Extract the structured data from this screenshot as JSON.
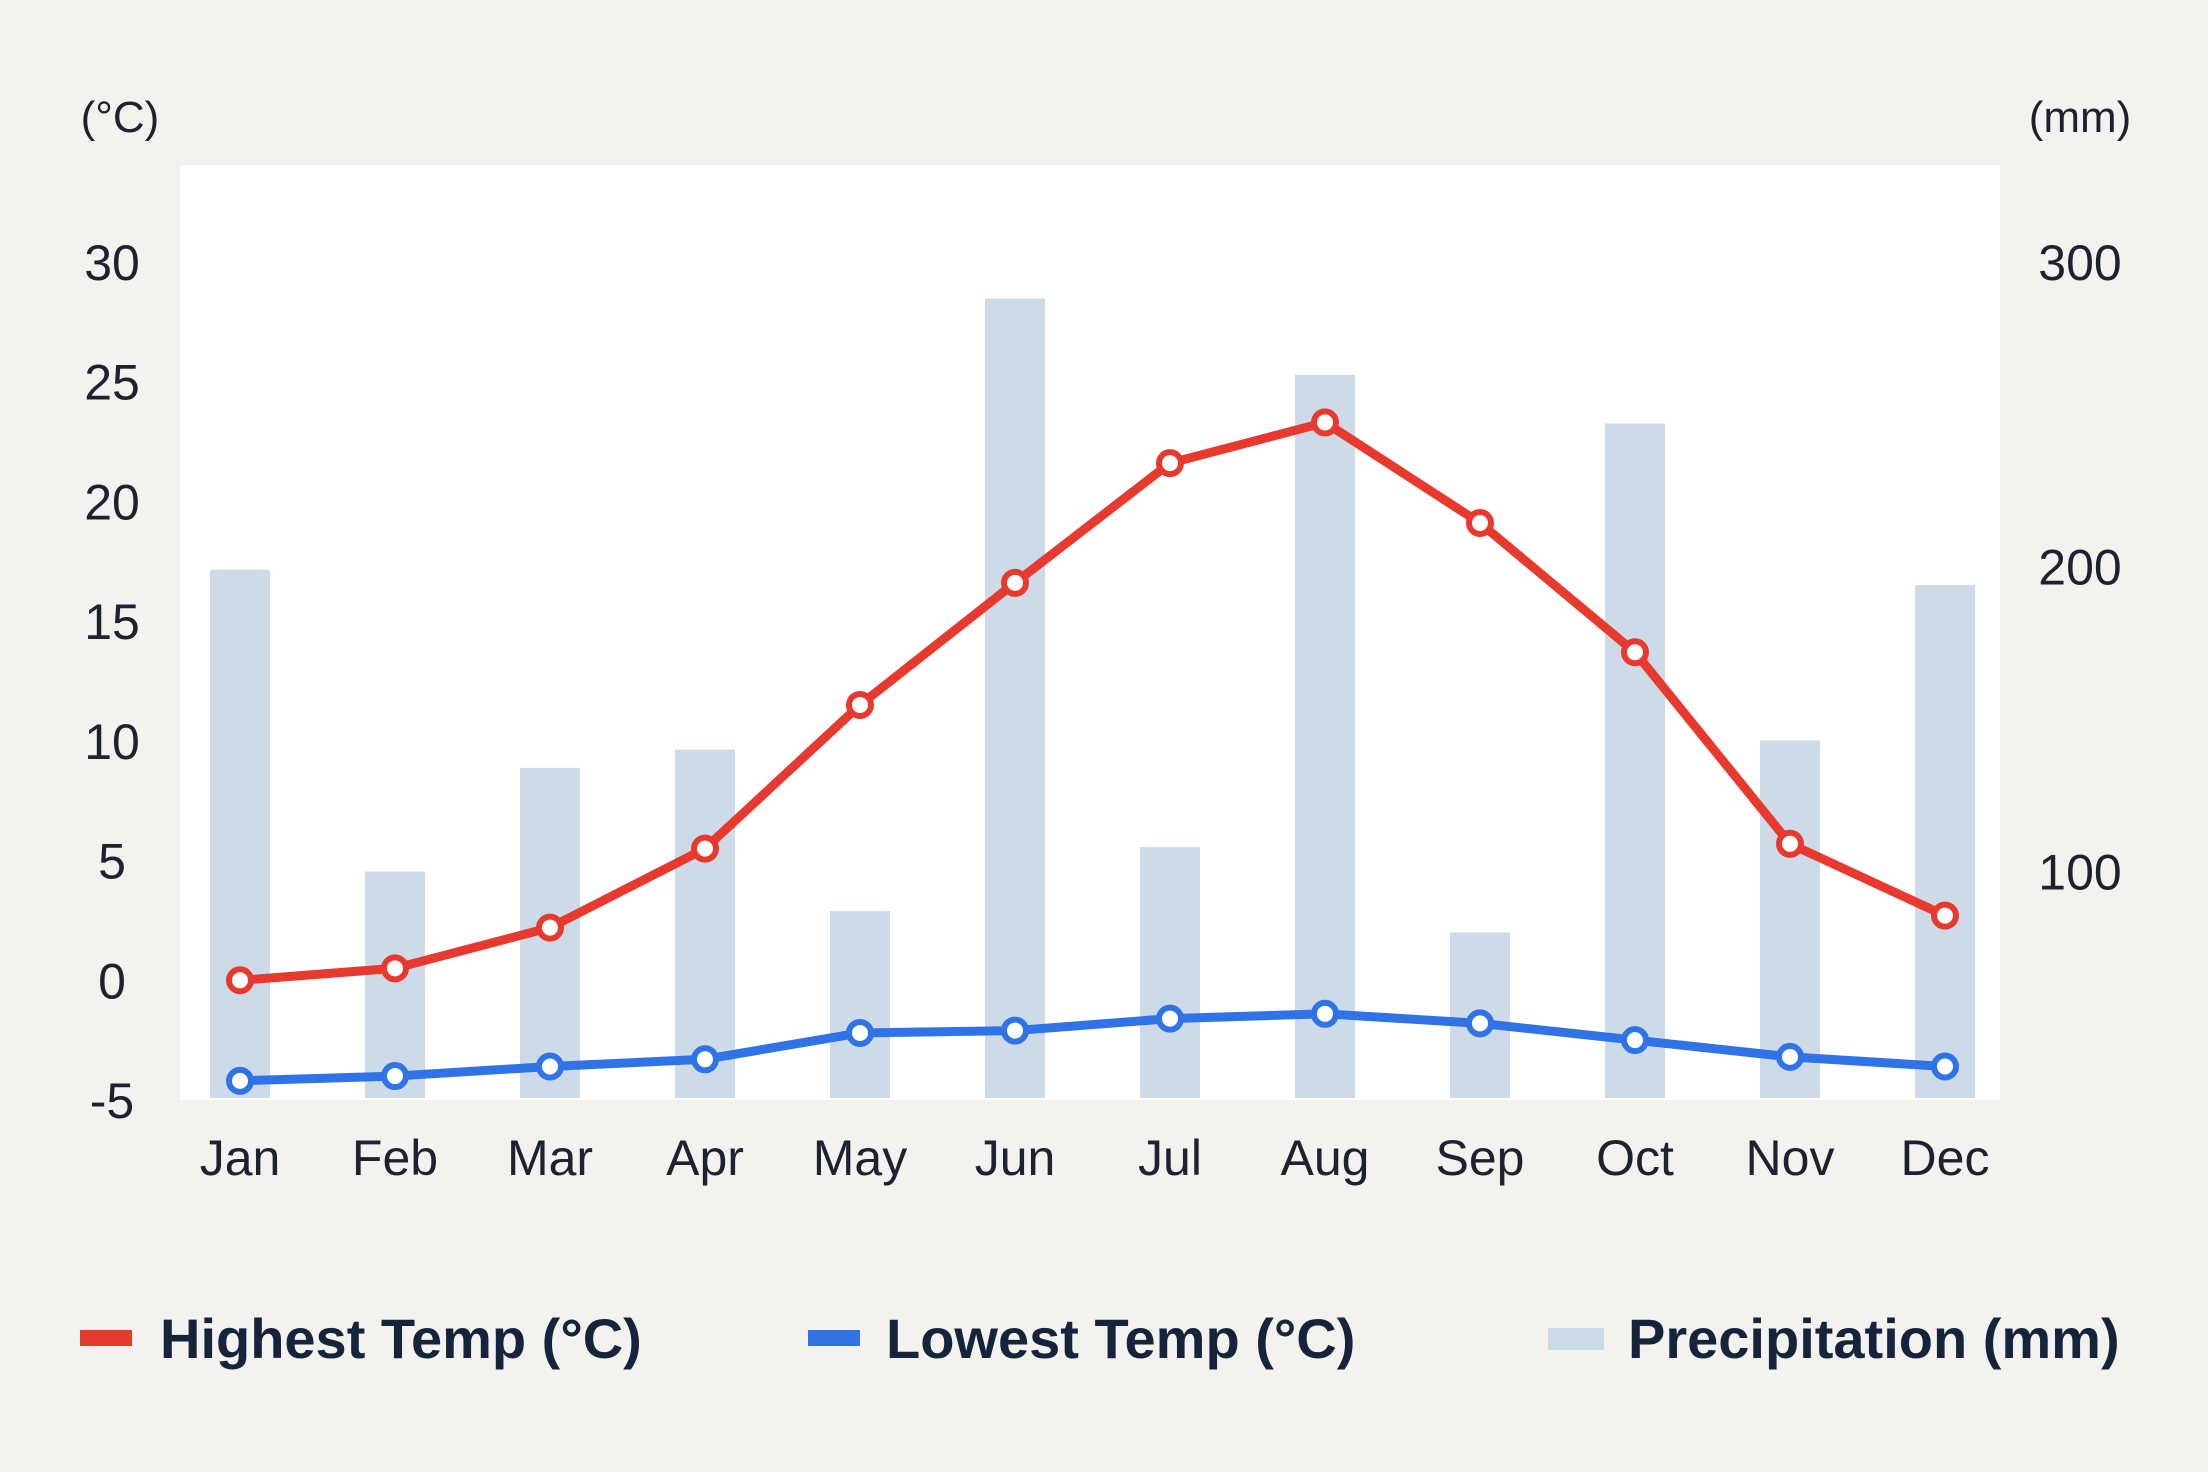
{
  "chart_data": {
    "type": "bar",
    "title": "",
    "categories": [
      "Jan",
      "Feb",
      "Mar",
      "Apr",
      "May",
      "Jun",
      "Jul",
      "Aug",
      "Sep",
      "Oct",
      "Nov",
      "Dec"
    ],
    "left_axis": {
      "unit_label": "(°C)",
      "ylim": [
        -5,
        30
      ],
      "ticks": [
        "30",
        "25",
        "20",
        "15",
        "10",
        "5",
        "0",
        "-5"
      ],
      "tick_values": [
        30,
        25,
        20,
        15,
        10,
        5,
        0,
        -5
      ]
    },
    "right_axis": {
      "unit_label": "(mm)",
      "ylim": [
        25,
        300
      ],
      "ticks": [
        "300",
        "200",
        "100"
      ],
      "tick_values": [
        300,
        200,
        100
      ]
    },
    "series": [
      {
        "name": "Highest Temp (°C)",
        "kind": "line",
        "axis": "left",
        "color": "#e8392f",
        "values": [
          0.0,
          0.5,
          2.2,
          5.5,
          11.5,
          16.6,
          21.6,
          23.3,
          19.1,
          13.7,
          5.7,
          2.7
        ]
      },
      {
        "name": "Lowest Temp (°C)",
        "kind": "line",
        "axis": "left",
        "color": "#2f73e6",
        "values": [
          -4.2,
          -4.0,
          -3.6,
          -3.3,
          -2.2,
          -2.1,
          -1.6,
          -1.4,
          -1.8,
          -2.5,
          -3.2,
          -3.6
        ]
      },
      {
        "name": "Precipitation (mm)",
        "kind": "bar",
        "axis": "right",
        "color": "#cddbe8",
        "values": [
          199,
          100,
          134,
          140,
          87,
          288,
          108,
          263,
          80,
          247,
          143,
          194
        ]
      }
    ],
    "grid": false,
    "legend_position": "bottom",
    "plot_background": "#ffffff",
    "page_background": "#f3f2ee"
  }
}
